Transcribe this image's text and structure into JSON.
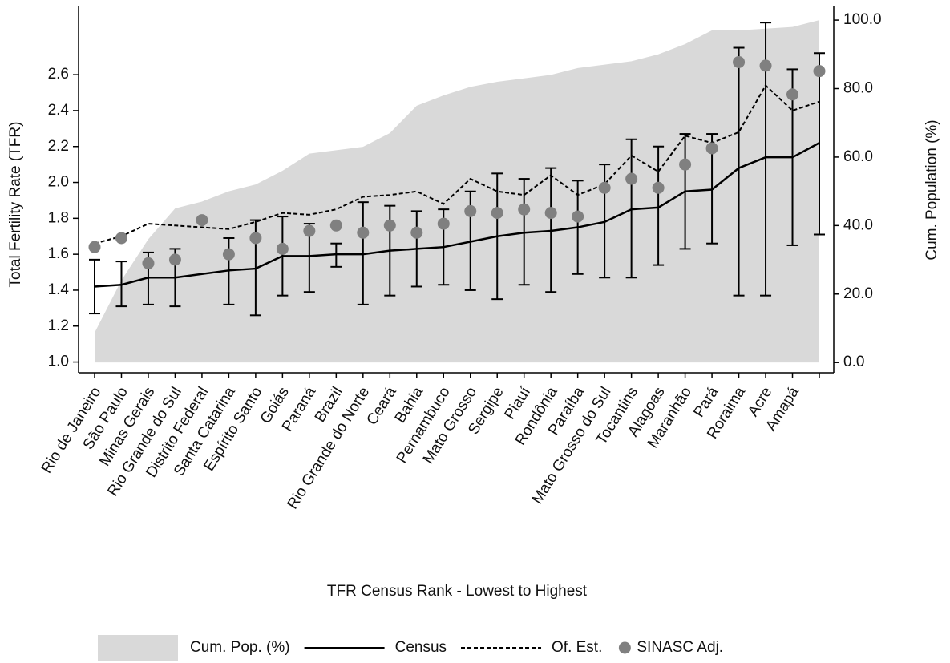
{
  "chart_data": {
    "type": "line",
    "x_label": "TFR Census Rank - Lowest to Highest",
    "y_label": "Total Fertility Rate (TFR)",
    "y2_label": "Cum. Population (%)",
    "categories": [
      "Rio de Janeiro",
      "São Paulo",
      "Minas Gerais",
      "Rio Grande do Sul",
      "Distrito Federal",
      "Santa Catarina",
      "Espírito Santo",
      "Goiás",
      "Paraná",
      "Brazil",
      "Rio Grande do Norte",
      "Ceará",
      "Bahia",
      "Pernambuco",
      "Mato Grosso",
      "Sergipe",
      "Piauí",
      "Rondônia",
      "Paraíba",
      "Mato Grosso do Sul",
      "Tocantins",
      "Alagoas",
      "Maranhão",
      "Pará",
      "Roraima",
      "Acre",
      "Amapá",
      null
    ],
    "ylim": [
      0.94,
      2.98
    ],
    "yticks": [
      {
        "value": 1,
        "label": "1.0"
      },
      {
        "value": 1.2,
        "label": "1.2"
      },
      {
        "value": 1.4,
        "label": "1.4"
      },
      {
        "value": 1.6,
        "label": "1.6"
      },
      {
        "value": 1.8,
        "label": "1.8"
      },
      {
        "value": 2,
        "label": "2.0"
      },
      {
        "value": 2.2,
        "label": "2.2"
      },
      {
        "value": 2.4,
        "label": "2.4"
      },
      {
        "value": 2.6,
        "label": "2.6"
      }
    ],
    "y2lim": [
      -3,
      104
    ],
    "y2ticks": [
      {
        "value": 0,
        "label": "0.0"
      },
      {
        "value": 20,
        "label": "20.0"
      },
      {
        "value": 40,
        "label": "40.0"
      },
      {
        "value": 60,
        "label": "60.0"
      },
      {
        "value": 80,
        "label": "80.0"
      },
      {
        "value": 100,
        "label": "100.0"
      }
    ],
    "series": [
      {
        "name": "Cum. Pop. (%)",
        "style": "area",
        "axis": "y2",
        "color": "#d9d9d9",
        "values": [
          8.7,
          24,
          36,
          45,
          47,
          50,
          52,
          56,
          61,
          62,
          63,
          67,
          75,
          78,
          80.5,
          82,
          83,
          84,
          86,
          87,
          88,
          90,
          93,
          97,
          97,
          97.5,
          98,
          100
        ]
      },
      {
        "name": "Census",
        "style": "solid",
        "color": "#000000",
        "values": [
          1.42,
          1.43,
          1.47,
          1.47,
          1.49,
          1.51,
          1.52,
          1.59,
          1.59,
          1.6,
          1.6,
          1.62,
          1.63,
          1.64,
          1.67,
          1.7,
          1.72,
          1.73,
          1.75,
          1.78,
          1.85,
          1.86,
          1.95,
          1.96,
          2.08,
          2.14,
          2.14,
          2.22
        ],
        "lower": [
          1.27,
          1.31,
          1.32,
          1.31,
          null,
          1.32,
          1.26,
          1.37,
          1.39,
          1.53,
          1.32,
          1.37,
          1.42,
          1.43,
          1.4,
          1.35,
          1.43,
          1.39,
          1.49,
          1.47,
          1.47,
          1.54,
          1.63,
          1.66,
          1.37,
          1.37,
          1.65,
          1.71
        ],
        "upper": [
          1.57,
          1.56,
          1.61,
          1.63,
          null,
          1.69,
          1.79,
          1.81,
          1.77,
          1.66,
          1.89,
          1.87,
          1.84,
          1.85,
          1.95,
          2.05,
          2.02,
          2.08,
          2.01,
          2.1,
          2.24,
          2.2,
          2.27,
          2.27,
          2.75,
          2.89,
          2.63,
          2.72
        ]
      },
      {
        "name": "Of. Est.",
        "style": "dashed",
        "color": "#000000",
        "values": [
          1.66,
          1.7,
          1.77,
          1.76,
          1.75,
          1.74,
          1.78,
          1.83,
          1.82,
          1.85,
          1.92,
          1.93,
          1.95,
          1.88,
          2.02,
          1.95,
          1.93,
          2.04,
          1.93,
          1.99,
          2.15,
          2.06,
          2.26,
          2.22,
          2.28,
          2.54,
          2.4,
          2.45
        ]
      },
      {
        "name": "SINASC Adj.",
        "style": "points",
        "color": "#808080",
        "values": [
          1.64,
          1.69,
          1.55,
          1.57,
          1.79,
          1.6,
          1.69,
          1.63,
          1.73,
          1.76,
          1.72,
          1.76,
          1.72,
          1.77,
          1.84,
          1.83,
          1.85,
          1.83,
          1.81,
          1.97,
          2.02,
          1.97,
          2.1,
          2.19,
          2.67,
          2.65,
          2.49,
          2.62
        ]
      }
    ]
  }
}
